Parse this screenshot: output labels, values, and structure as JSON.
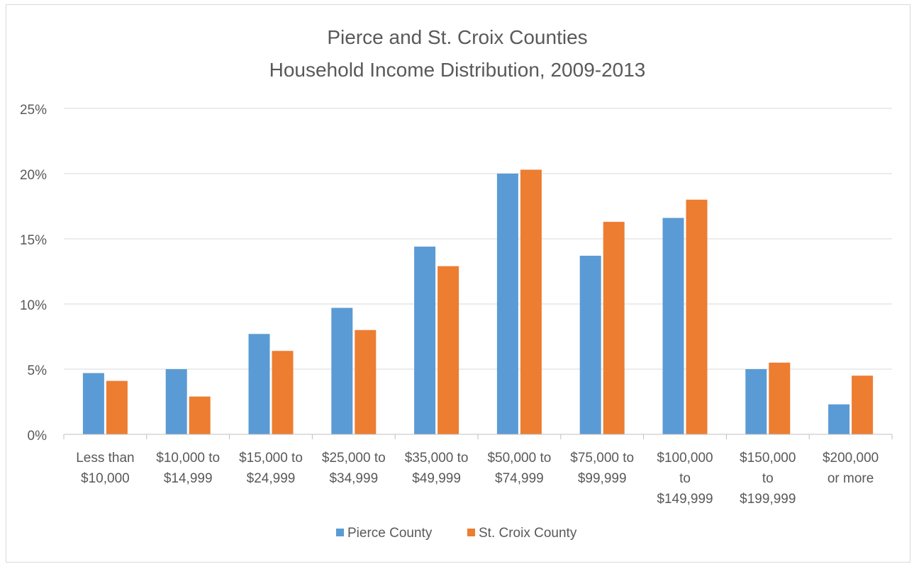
{
  "chart_data": {
    "type": "bar",
    "title": [
      "Pierce and St. Croix Counties",
      "Household Income Distribution, 2009-2013"
    ],
    "xlabel": "",
    "ylabel": "",
    "ylim": [
      0,
      0.25
    ],
    "y_ticks": [
      0,
      0.05,
      0.1,
      0.15,
      0.2,
      0.25
    ],
    "y_tick_labels": [
      "0%",
      "5%",
      "10%",
      "15%",
      "20%",
      "25%"
    ],
    "grid": true,
    "legend_position": "bottom",
    "categories": [
      [
        "Less than",
        "$10,000"
      ],
      [
        "$10,000 to",
        "$14,999"
      ],
      [
        "$15,000 to",
        "$24,999"
      ],
      [
        "$25,000 to",
        "$34,999"
      ],
      [
        "$35,000 to",
        "$49,999"
      ],
      [
        "$50,000 to",
        "$74,999"
      ],
      [
        "$75,000 to",
        "$99,999"
      ],
      [
        "$100,000",
        "to",
        "$149,999"
      ],
      [
        "$150,000",
        "to",
        "$199,999"
      ],
      [
        "$200,000",
        "or more"
      ]
    ],
    "series": [
      {
        "name": "Pierce County",
        "color": "#5b9bd5",
        "values": [
          0.047,
          0.05,
          0.077,
          0.097,
          0.144,
          0.2,
          0.137,
          0.166,
          0.05,
          0.023
        ]
      },
      {
        "name": "St. Croix County",
        "color": "#ed7d31",
        "values": [
          0.041,
          0.029,
          0.064,
          0.08,
          0.129,
          0.203,
          0.163,
          0.18,
          0.055,
          0.045
        ]
      }
    ]
  }
}
